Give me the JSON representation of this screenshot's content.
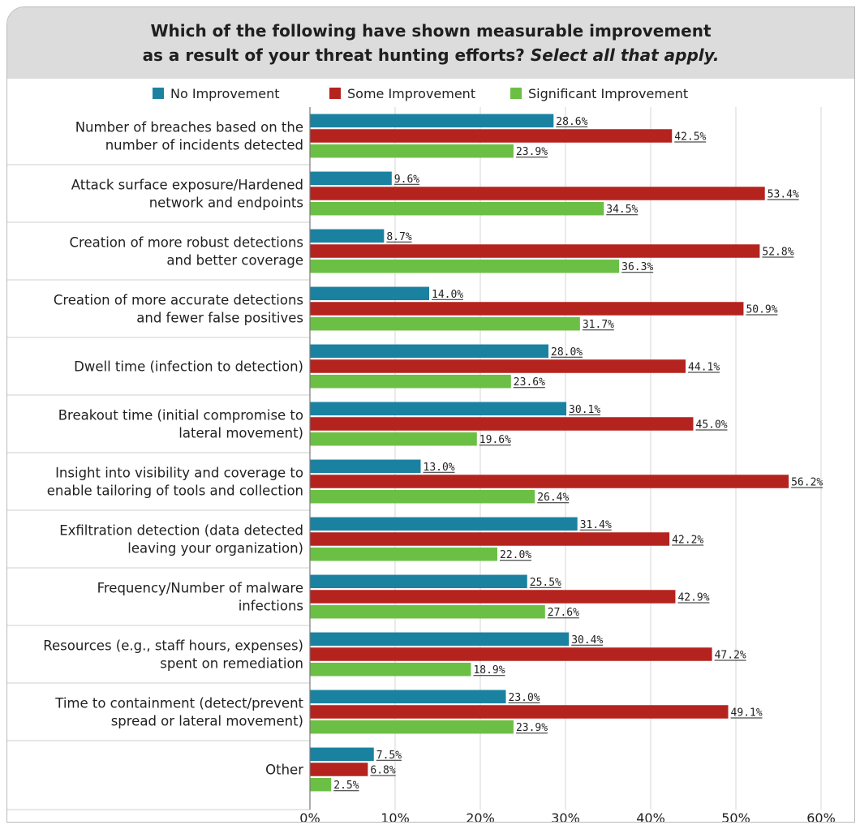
{
  "title": {
    "line1": "Which of the following have shown measurable improvement",
    "line2_main": "as a result of your threat hunting efforts? ",
    "line2_emphasis": "Select all that apply."
  },
  "colors": {
    "No Improvement": "#1a82a0",
    "Some Improvement": "#b5231f",
    "Significant Improvement": "#6cbf45"
  },
  "chart_data": {
    "type": "bar",
    "orientation": "horizontal",
    "title": "Which of the following have shown measurable improvement as a result of your threat hunting efforts? Select all that apply.",
    "legend_position": "top",
    "grid": true,
    "xlim": [
      0,
      60
    ],
    "ticks": [
      "0%",
      "10%",
      "20%",
      "30%",
      "40%",
      "50%",
      "60%"
    ],
    "tick_values": [
      0,
      10,
      20,
      30,
      40,
      50,
      60
    ],
    "categories": [
      [
        "Number of breaches based on the",
        "number of incidents detected"
      ],
      [
        "Attack surface exposure/Hardened",
        "network and endpoints"
      ],
      [
        "Creation of more robust detections",
        "and better coverage"
      ],
      [
        "Creation of more accurate detections",
        "and fewer false positives"
      ],
      [
        "Dwell time (infection to detection)"
      ],
      [
        "Breakout time (initial compromise to",
        "lateral movement)"
      ],
      [
        "Insight into visibility and coverage to",
        "enable tailoring of tools and collection"
      ],
      [
        "Exfiltration detection (data detected",
        "leaving your organization)"
      ],
      [
        "Frequency/Number of malware",
        "infections"
      ],
      [
        "Resources (e.g., staff hours, expenses)",
        "spent on remediation"
      ],
      [
        "Time to containment (detect/prevent",
        "spread or lateral movement)"
      ],
      [
        "Other"
      ]
    ],
    "series": [
      {
        "name": "No Improvement",
        "values": [
          28.6,
          9.6,
          8.7,
          14.0,
          28.0,
          30.1,
          13.0,
          31.4,
          25.5,
          30.4,
          23.0,
          7.5
        ]
      },
      {
        "name": "Some Improvement",
        "values": [
          42.5,
          53.4,
          52.8,
          50.9,
          44.1,
          45.0,
          56.2,
          42.2,
          42.9,
          47.2,
          49.1,
          6.8
        ]
      },
      {
        "name": "Significant Improvement",
        "values": [
          23.9,
          34.5,
          36.3,
          31.7,
          23.6,
          19.6,
          26.4,
          22.0,
          27.6,
          18.9,
          23.9,
          2.5
        ]
      }
    ]
  }
}
